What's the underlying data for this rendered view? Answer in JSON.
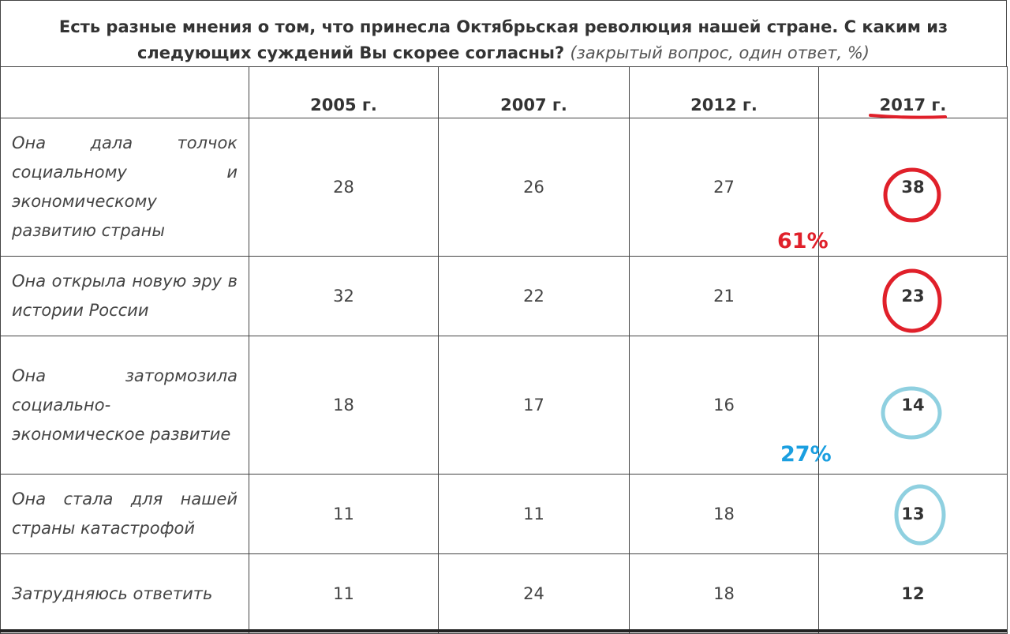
{
  "title": {
    "main": "Есть разные мнения о том, что принесла Октябрьская революция нашей стране. С каким из следующих суждений Вы скорее согласны?",
    "note": "(закрытый вопрос, один ответ, %)"
  },
  "table": {
    "headers": [
      "",
      "2005 г.",
      "2007 г.",
      "2012 г.",
      "2017 г."
    ],
    "rows": [
      {
        "label": "Она дала толчок социальному и экономическому развитию страны",
        "values": [
          "28",
          "26",
          "27",
          "38"
        ]
      },
      {
        "label": "Она открыла новую эру в истории России",
        "values": [
          "32",
          "22",
          "21",
          "23"
        ]
      },
      {
        "label": "Она затормозила социально-экономическое развитие",
        "values": [
          "18",
          "17",
          "16",
          "14"
        ]
      },
      {
        "label": "Она стала для нашей страны катастрофой",
        "values": [
          "11",
          "11",
          "18",
          "13"
        ]
      },
      {
        "label": "Затрудняюсь ответить",
        "values": [
          "11",
          "24",
          "18",
          "12"
        ]
      }
    ]
  },
  "annotations": {
    "positive_total": "61%",
    "negative_total": "27%",
    "colors": {
      "red": "#e0202a",
      "blue": "#8fd0e0",
      "blue_text": "#1b9fe0"
    }
  }
}
